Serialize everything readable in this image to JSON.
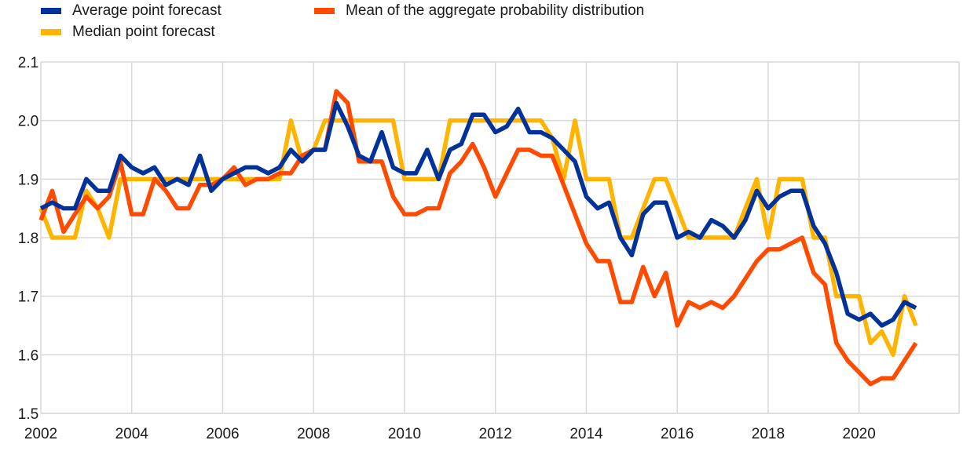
{
  "chart_data": {
    "type": "line",
    "title": "",
    "xlabel": "",
    "ylabel": "",
    "ylim": [
      1.5,
      2.1
    ],
    "xlim": [
      2002,
      2022.2
    ],
    "yticks": [
      "1.5",
      "1.6",
      "1.7",
      "1.8",
      "1.9",
      "2.0",
      "2.1"
    ],
    "xticks": [
      "2002",
      "2004",
      "2006",
      "2008",
      "2010",
      "2012",
      "2014",
      "2016",
      "2018",
      "2020"
    ],
    "grid": true,
    "legend_position": "top",
    "x_start": 2002.0,
    "x_step": 0.25,
    "series": [
      {
        "name": "Average point forecast",
        "color": "#003299",
        "values": [
          1.85,
          1.86,
          1.85,
          1.85,
          1.9,
          1.88,
          1.88,
          1.94,
          1.92,
          1.91,
          1.92,
          1.89,
          1.9,
          1.89,
          1.94,
          1.88,
          1.9,
          1.91,
          1.92,
          1.92,
          1.91,
          1.92,
          1.95,
          1.93,
          1.95,
          1.95,
          2.03,
          1.99,
          1.94,
          1.93,
          1.98,
          1.92,
          1.91,
          1.91,
          1.95,
          1.9,
          1.95,
          1.96,
          2.01,
          2.01,
          1.98,
          1.99,
          2.02,
          1.98,
          1.98,
          1.97,
          1.95,
          1.93,
          1.87,
          1.85,
          1.86,
          1.8,
          1.77,
          1.84,
          1.86,
          1.86,
          1.8,
          1.81,
          1.8,
          1.83,
          1.82,
          1.8,
          1.83,
          1.88,
          1.85,
          1.87,
          1.88,
          1.88,
          1.82,
          1.79,
          1.74,
          1.67,
          1.66,
          1.67,
          1.65,
          1.66,
          1.69,
          1.68
        ]
      },
      {
        "name": "Mean of the aggregate probability distribution",
        "color": "#FF4B00",
        "values": [
          1.83,
          1.88,
          1.81,
          1.84,
          1.87,
          1.85,
          1.87,
          1.93,
          1.84,
          1.84,
          1.9,
          1.88,
          1.85,
          1.85,
          1.89,
          1.89,
          1.9,
          1.92,
          1.89,
          1.9,
          1.9,
          1.91,
          1.91,
          1.94,
          1.95,
          1.95,
          2.05,
          2.03,
          1.93,
          1.93,
          1.93,
          1.87,
          1.84,
          1.84,
          1.85,
          1.85,
          1.91,
          1.93,
          1.96,
          1.92,
          1.87,
          1.91,
          1.95,
          1.95,
          1.94,
          1.94,
          1.89,
          1.84,
          1.79,
          1.76,
          1.76,
          1.69,
          1.69,
          1.75,
          1.7,
          1.74,
          1.65,
          1.69,
          1.68,
          1.69,
          1.68,
          1.7,
          1.73,
          1.76,
          1.78,
          1.78,
          1.79,
          1.8,
          1.74,
          1.72,
          1.62,
          1.59,
          1.57,
          1.55,
          1.56,
          1.56,
          1.59,
          1.62
        ]
      },
      {
        "name": "Median point forecast",
        "color": "#FFB400",
        "values": [
          1.85,
          1.8,
          1.8,
          1.8,
          1.88,
          1.85,
          1.8,
          1.9,
          1.9,
          1.9,
          1.9,
          1.9,
          1.9,
          1.9,
          1.9,
          1.9,
          1.9,
          1.9,
          1.9,
          1.9,
          1.9,
          1.9,
          2.0,
          1.93,
          1.95,
          2.0,
          2.0,
          2.0,
          2.0,
          2.0,
          2.0,
          2.0,
          1.9,
          1.9,
          1.9,
          1.9,
          2.0,
          2.0,
          2.0,
          2.0,
          2.0,
          2.0,
          2.0,
          2.0,
          2.0,
          1.97,
          1.9,
          2.0,
          1.9,
          1.9,
          1.9,
          1.8,
          1.8,
          1.85,
          1.9,
          1.9,
          1.85,
          1.8,
          1.8,
          1.8,
          1.8,
          1.8,
          1.85,
          1.9,
          1.8,
          1.9,
          1.9,
          1.9,
          1.8,
          1.8,
          1.7,
          1.7,
          1.7,
          1.62,
          1.64,
          1.6,
          1.7,
          1.65
        ]
      }
    ]
  }
}
